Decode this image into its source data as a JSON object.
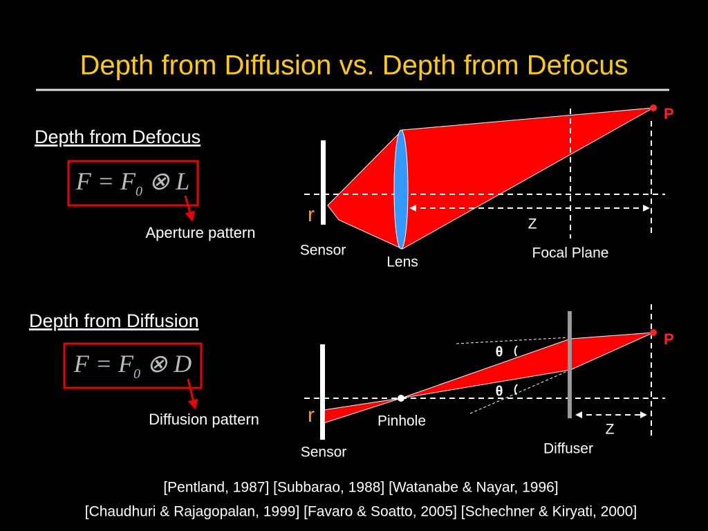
{
  "title": "Depth from Diffusion vs. Depth from Defocus",
  "defocus": {
    "heading": "Depth from Defocus",
    "formula": {
      "main": "F = F",
      "sub": "0",
      "rest": " ⊗ L"
    },
    "note": "Aperture pattern",
    "labels": {
      "point": "P",
      "r": "r",
      "sensor": "Sensor",
      "lens": "Lens",
      "z": "Z",
      "focal_plane": "Focal Plane"
    }
  },
  "diffusion": {
    "heading": "Depth from Diffusion",
    "formula": {
      "main": "F = F",
      "sub": "0",
      "rest": " ⊗ D"
    },
    "note": "Diffusion pattern",
    "labels": {
      "point": "P",
      "r": "r",
      "theta_top": "θ",
      "theta_bottom": "θ",
      "pinhole": "Pinhole",
      "sensor": "Sensor",
      "z": "Z",
      "diffuser": "Diffuser"
    }
  },
  "references": [
    "[Pentland, 1987] [Subbarao, 1988] [Watanabe & Nayar, 1996]",
    "[Chaudhuri & Rajagopalan, 1999] [Favaro & Soatto, 2005] [Schechner & Kiryati, 2000]"
  ]
}
